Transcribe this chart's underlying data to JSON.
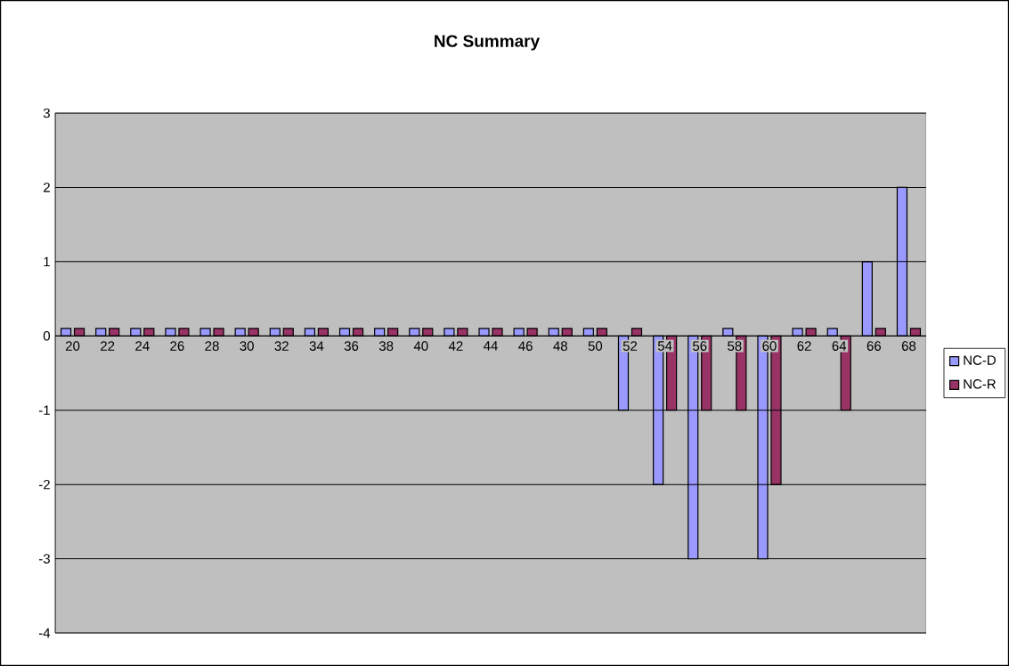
{
  "chart_data": {
    "type": "bar",
    "title": "NC Summary",
    "categories": [
      "20",
      "22",
      "24",
      "26",
      "28",
      "30",
      "32",
      "34",
      "36",
      "38",
      "40",
      "42",
      "44",
      "46",
      "48",
      "50",
      "52",
      "54",
      "56",
      "58",
      "60",
      "62",
      "64",
      "66",
      "68"
    ],
    "series": [
      {
        "name": "NC-D",
        "color": "#9999ff",
        "values": [
          0.1,
          0.1,
          0.1,
          0.1,
          0.1,
          0.1,
          0.1,
          0.1,
          0.1,
          0.1,
          0.1,
          0.1,
          0.1,
          0.1,
          0.1,
          0.1,
          -1,
          -2,
          -3,
          0.1,
          -3,
          0.1,
          0.1,
          1,
          2
        ]
      },
      {
        "name": "NC-R",
        "color": "#993366",
        "values": [
          0.1,
          0.1,
          0.1,
          0.1,
          0.1,
          0.1,
          0.1,
          0.1,
          0.1,
          0.1,
          0.1,
          0.1,
          0.1,
          0.1,
          0.1,
          0.1,
          0.1,
          -1,
          -1,
          -1,
          -2,
          0.1,
          -1,
          0.1,
          0.1
        ]
      }
    ],
    "ylim": [
      -4,
      3
    ],
    "yticks": [
      -4,
      -3,
      -2,
      -1,
      0,
      1,
      2,
      3
    ],
    "grid": "y",
    "legend": "right"
  }
}
